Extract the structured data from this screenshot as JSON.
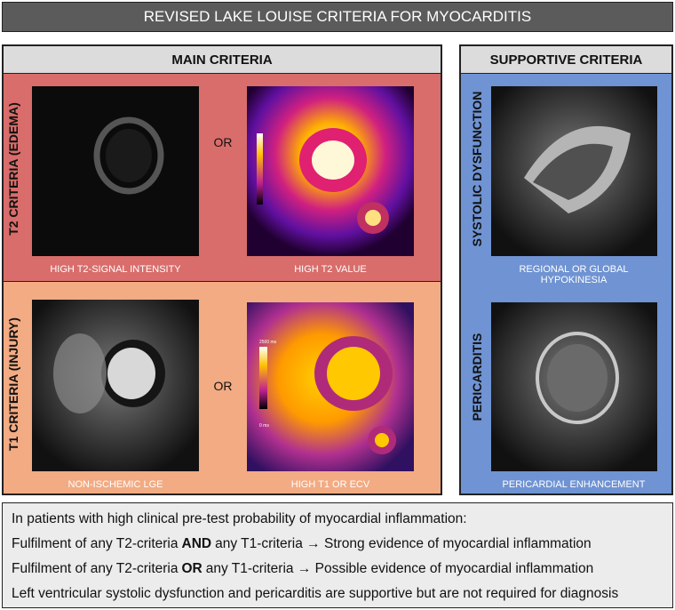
{
  "header": {
    "title": "REVISED LAKE LOUISE CRITERIA FOR MYOCARDITIS"
  },
  "main": {
    "title": "MAIN CRITERIA",
    "rows": [
      {
        "label": "T2 CRITERIA (EDEMA)",
        "left_caption": "HIGH T2-SIGNAL INTENSITY",
        "connector": "OR",
        "right_caption": "HIGH T2 VALUE"
      },
      {
        "label": "T1 CRITERIA (INJURY)",
        "left_caption": "NON-ISCHEMIC LGE",
        "connector": "OR",
        "right_caption": "HIGH T1 OR ECV",
        "scale_max": "2500 ms",
        "scale_min": "0 ms"
      }
    ]
  },
  "supportive": {
    "title": "SUPPORTIVE CRITERIA",
    "items": [
      {
        "label": "SYSTOLIC DYSFUNCTION",
        "caption": "REGIONAL OR GLOBAL HYPOKINESIA"
      },
      {
        "label": "PERICARDITIS",
        "caption": "PERICARDIAL ENHANCEMENT"
      }
    ]
  },
  "footer": {
    "lines": [
      {
        "text": "In patients with high clinical pre-test probability of myocardial inflammation:"
      },
      {
        "before": "Fulfilment of any T2-criteria",
        "emphasis": "AND",
        "after": "any T1-criteria → Strong evidence of myocardial inflammation"
      },
      {
        "before": "Fulfilment of any T2-criteria",
        "emphasis": "OR",
        "after": "any T1-criteria → Possible evidence of myocardial inflammation"
      },
      {
        "text": "Left ventricular systolic dysfunction and pericarditis are supportive but are not required for diagnosis"
      }
    ]
  }
}
